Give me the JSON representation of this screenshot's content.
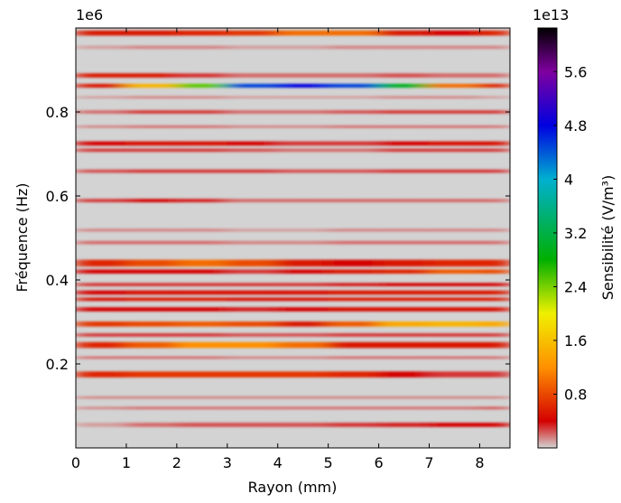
{
  "chart_data": {
    "type": "heatmap",
    "xlabel": "Rayon (mm)",
    "ylabel": "Fréquence (Hz)",
    "y_offset": "1e6",
    "xlim": [
      0,
      8.6
    ],
    "ylim": [
      0,
      1.0
    ],
    "xticks": [
      0,
      1,
      2,
      3,
      4,
      5,
      6,
      7,
      8
    ],
    "yticks": [
      0.2,
      0.4,
      0.6,
      0.8
    ],
    "x_edges": [
      0,
      1,
      2,
      3,
      4,
      5,
      6,
      7,
      8,
      8.6
    ],
    "bands": [
      {
        "y": [
          0.982,
          0.994
        ],
        "z": [
          0.5,
          0.5,
          0.6,
          0.7,
          1.0,
          1.0,
          0.5,
          0.4,
          0.6
        ]
      },
      {
        "y": [
          0.95,
          0.958
        ],
        "z": [
          0.1,
          0.15,
          0.15,
          0.1,
          0.1,
          0.15,
          0.15,
          0.15,
          0.15
        ]
      },
      {
        "y": [
          0.882,
          0.892
        ],
        "z": [
          0.5,
          0.5,
          0.3,
          0.2,
          0.2,
          0.2,
          0.25,
          0.2,
          0.2
        ]
      },
      {
        "y": [
          0.858,
          0.867
        ],
        "z": [
          0.5,
          1.5,
          2.5,
          4.5,
          4.8,
          4.5,
          3.0,
          1.0,
          0.6
        ]
      },
      {
        "y": [
          0.832,
          0.838
        ],
        "z": [
          0.1,
          0.15,
          0.15,
          0.1,
          0.1,
          0.1,
          0.15,
          0.15,
          0.1
        ]
      },
      {
        "y": [
          0.796,
          0.804
        ],
        "z": [
          0.2,
          0.3,
          0.3,
          0.2,
          0.2,
          0.25,
          0.3,
          0.3,
          0.3
        ]
      },
      {
        "y": [
          0.762,
          0.768
        ],
        "z": [
          0.15,
          0.2,
          0.2,
          0.15,
          0.15,
          0.2,
          0.2,
          0.2,
          0.2
        ]
      },
      {
        "y": [
          0.72,
          0.73
        ],
        "z": [
          0.4,
          0.45,
          0.45,
          0.4,
          0.3,
          0.3,
          0.4,
          0.45,
          0.45
        ]
      },
      {
        "y": [
          0.705,
          0.713
        ],
        "z": [
          0.3,
          0.3,
          0.3,
          0.25,
          0.2,
          0.2,
          0.3,
          0.3,
          0.3
        ]
      },
      {
        "y": [
          0.655,
          0.663
        ],
        "z": [
          0.25,
          0.3,
          0.3,
          0.3,
          0.25,
          0.25,
          0.3,
          0.3,
          0.3
        ]
      },
      {
        "y": [
          0.585,
          0.593
        ],
        "z": [
          0.3,
          0.4,
          0.35,
          0.2,
          0.2,
          0.2,
          0.2,
          0.2,
          0.2
        ]
      },
      {
        "y": [
          0.515,
          0.522
        ],
        "z": [
          0.15,
          0.15,
          0.15,
          0.1,
          0.1,
          0.15,
          0.15,
          0.15,
          0.15
        ]
      },
      {
        "y": [
          0.485,
          0.493
        ],
        "z": [
          0.2,
          0.2,
          0.2,
          0.15,
          0.15,
          0.2,
          0.2,
          0.2,
          0.2
        ]
      },
      {
        "y": [
          0.432,
          0.448
        ],
        "z": [
          0.6,
          0.8,
          1.0,
          0.8,
          0.5,
          0.4,
          0.5,
          0.6,
          0.6
        ]
      },
      {
        "y": [
          0.415,
          0.425
        ],
        "z": [
          0.4,
          0.4,
          0.4,
          0.3,
          0.4,
          0.5,
          0.6,
          0.9,
          0.8
        ]
      },
      {
        "y": [
          0.385,
          0.393
        ],
        "z": [
          0.3,
          0.3,
          0.3,
          0.3,
          0.3,
          0.35,
          0.4,
          0.4,
          0.4
        ]
      },
      {
        "y": [
          0.365,
          0.375
        ],
        "z": [
          0.4,
          0.45,
          0.45,
          0.45,
          0.45,
          0.5,
          0.5,
          0.5,
          0.5
        ]
      },
      {
        "y": [
          0.35,
          0.358
        ],
        "z": [
          0.45,
          0.5,
          0.5,
          0.45,
          0.45,
          0.5,
          0.5,
          0.5,
          0.5
        ]
      },
      {
        "y": [
          0.325,
          0.335
        ],
        "z": [
          0.4,
          0.4,
          0.4,
          0.35,
          0.4,
          0.45,
          0.45,
          0.45,
          0.45
        ]
      },
      {
        "y": [
          0.289,
          0.301
        ],
        "z": [
          0.7,
          0.8,
          0.9,
          0.8,
          0.5,
          0.9,
          1.4,
          1.5,
          1.4
        ]
      },
      {
        "y": [
          0.265,
          0.273
        ],
        "z": [
          0.3,
          0.3,
          0.3,
          0.25,
          0.25,
          0.3,
          0.3,
          0.3,
          0.3
        ]
      },
      {
        "y": [
          0.238,
          0.252
        ],
        "z": [
          0.6,
          0.9,
          1.2,
          1.2,
          1.0,
          0.5,
          0.5,
          0.5,
          0.5
        ]
      },
      {
        "y": [
          0.212,
          0.218
        ],
        "z": [
          0.2,
          0.2,
          0.2,
          0.15,
          0.15,
          0.2,
          0.2,
          0.2,
          0.2
        ]
      },
      {
        "y": [
          0.168,
          0.182
        ],
        "z": [
          0.6,
          0.7,
          0.7,
          0.7,
          0.7,
          0.6,
          0.4,
          0.3,
          0.3
        ]
      },
      {
        "y": [
          0.117,
          0.123
        ],
        "z": [
          0.15,
          0.15,
          0.15,
          0.15,
          0.15,
          0.15,
          0.15,
          0.15,
          0.15
        ]
      },
      {
        "y": [
          0.092,
          0.098
        ],
        "z": [
          0.15,
          0.2,
          0.2,
          0.2,
          0.2,
          0.2,
          0.2,
          0.2,
          0.25
        ]
      },
      {
        "y": [
          0.05,
          0.06
        ],
        "z": [
          0.1,
          0.2,
          0.25,
          0.25,
          0.25,
          0.3,
          0.35,
          0.4,
          0.4
        ]
      }
    ],
    "clabel": "Sensibilité (V/m³)",
    "c_offset": "1e13",
    "clim": [
      0,
      6.25
    ],
    "cticks": [
      0.8,
      1.6,
      2.4,
      3.2,
      4.0,
      4.8,
      5.6
    ],
    "colormap": [
      {
        "value": 0,
        "color": "#d3d3d3"
      },
      {
        "value": 0.4,
        "color": "#d40000"
      },
      {
        "value": 1.2,
        "color": "#ff9000"
      },
      {
        "value": 2.0,
        "color": "#f0f000"
      },
      {
        "value": 2.8,
        "color": "#00b000"
      },
      {
        "value": 4.0,
        "color": "#00b0d0"
      },
      {
        "value": 4.8,
        "color": "#0000e0"
      },
      {
        "value": 5.6,
        "color": "#8000a0"
      },
      {
        "value": 6.25,
        "color": "#000000"
      }
    ]
  }
}
